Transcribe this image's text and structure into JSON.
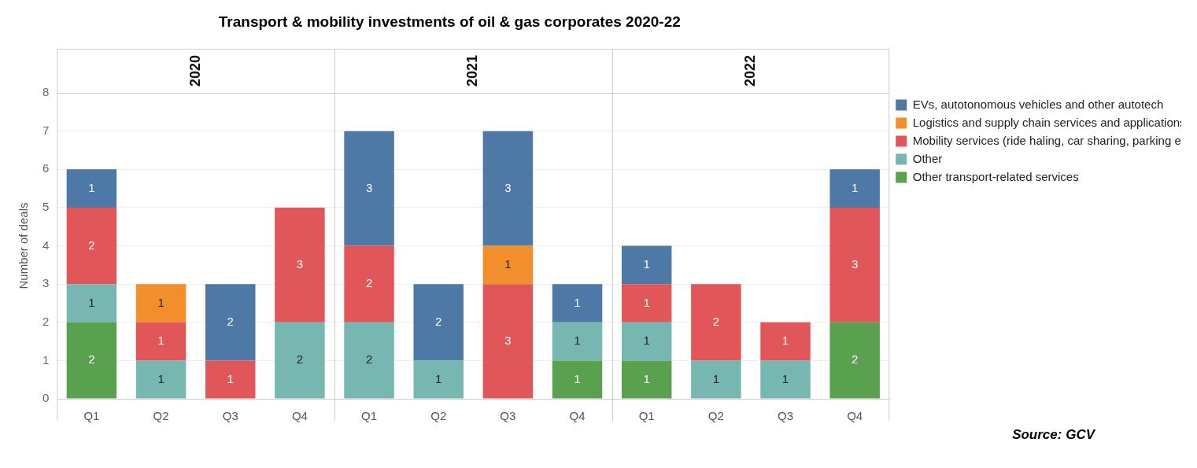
{
  "chart_data": {
    "type": "bar",
    "title": "Transport & mobility investments of oil & gas corporates 2020-22",
    "y_label": "Number of deals",
    "source": "Source: GCV",
    "categories": [
      "Q1",
      "Q2",
      "Q3",
      "Q4",
      "Q1",
      "Q2",
      "Q3",
      "Q4",
      "Q1",
      "Q2",
      "Q3",
      "Q4"
    ],
    "category_groups": [
      "2020",
      "2020",
      "2020",
      "2020",
      "2021",
      "2021",
      "2021",
      "2021",
      "2022",
      "2022",
      "2022",
      "2022"
    ],
    "series": [
      {
        "name": "EVs, autotonomous vehicles and other autotech",
        "color": "#4e79a7",
        "values": [
          1,
          null,
          2,
          null,
          3,
          2,
          3,
          1,
          1,
          null,
          null,
          1
        ]
      },
      {
        "name": "Logistics and supply chain services and applications",
        "color": "#f28e2b",
        "values": [
          null,
          1,
          null,
          null,
          null,
          null,
          1,
          null,
          null,
          null,
          null,
          null
        ]
      },
      {
        "name": "Mobility services (ride haling, car sharing, parking etc)",
        "color": "#e15759",
        "values": [
          2,
          1,
          1,
          3,
          2,
          null,
          3,
          null,
          1,
          2,
          1,
          3
        ]
      },
      {
        "name": "Other",
        "color": "#76b7b2",
        "values": [
          1,
          1,
          null,
          2,
          2,
          1,
          null,
          1,
          1,
          1,
          1,
          null
        ]
      },
      {
        "name": "Other transport-related services",
        "color": "#59a14f",
        "values": [
          2,
          null,
          null,
          null,
          null,
          null,
          null,
          1,
          1,
          null,
          null,
          2
        ]
      }
    ],
    "ylim": [
      0,
      8
    ],
    "yticks": [
      0,
      1,
      2,
      3,
      4,
      5,
      6,
      7,
      8
    ],
    "stacked": true,
    "data_labels": true,
    "grid": true,
    "legend": "right"
  }
}
